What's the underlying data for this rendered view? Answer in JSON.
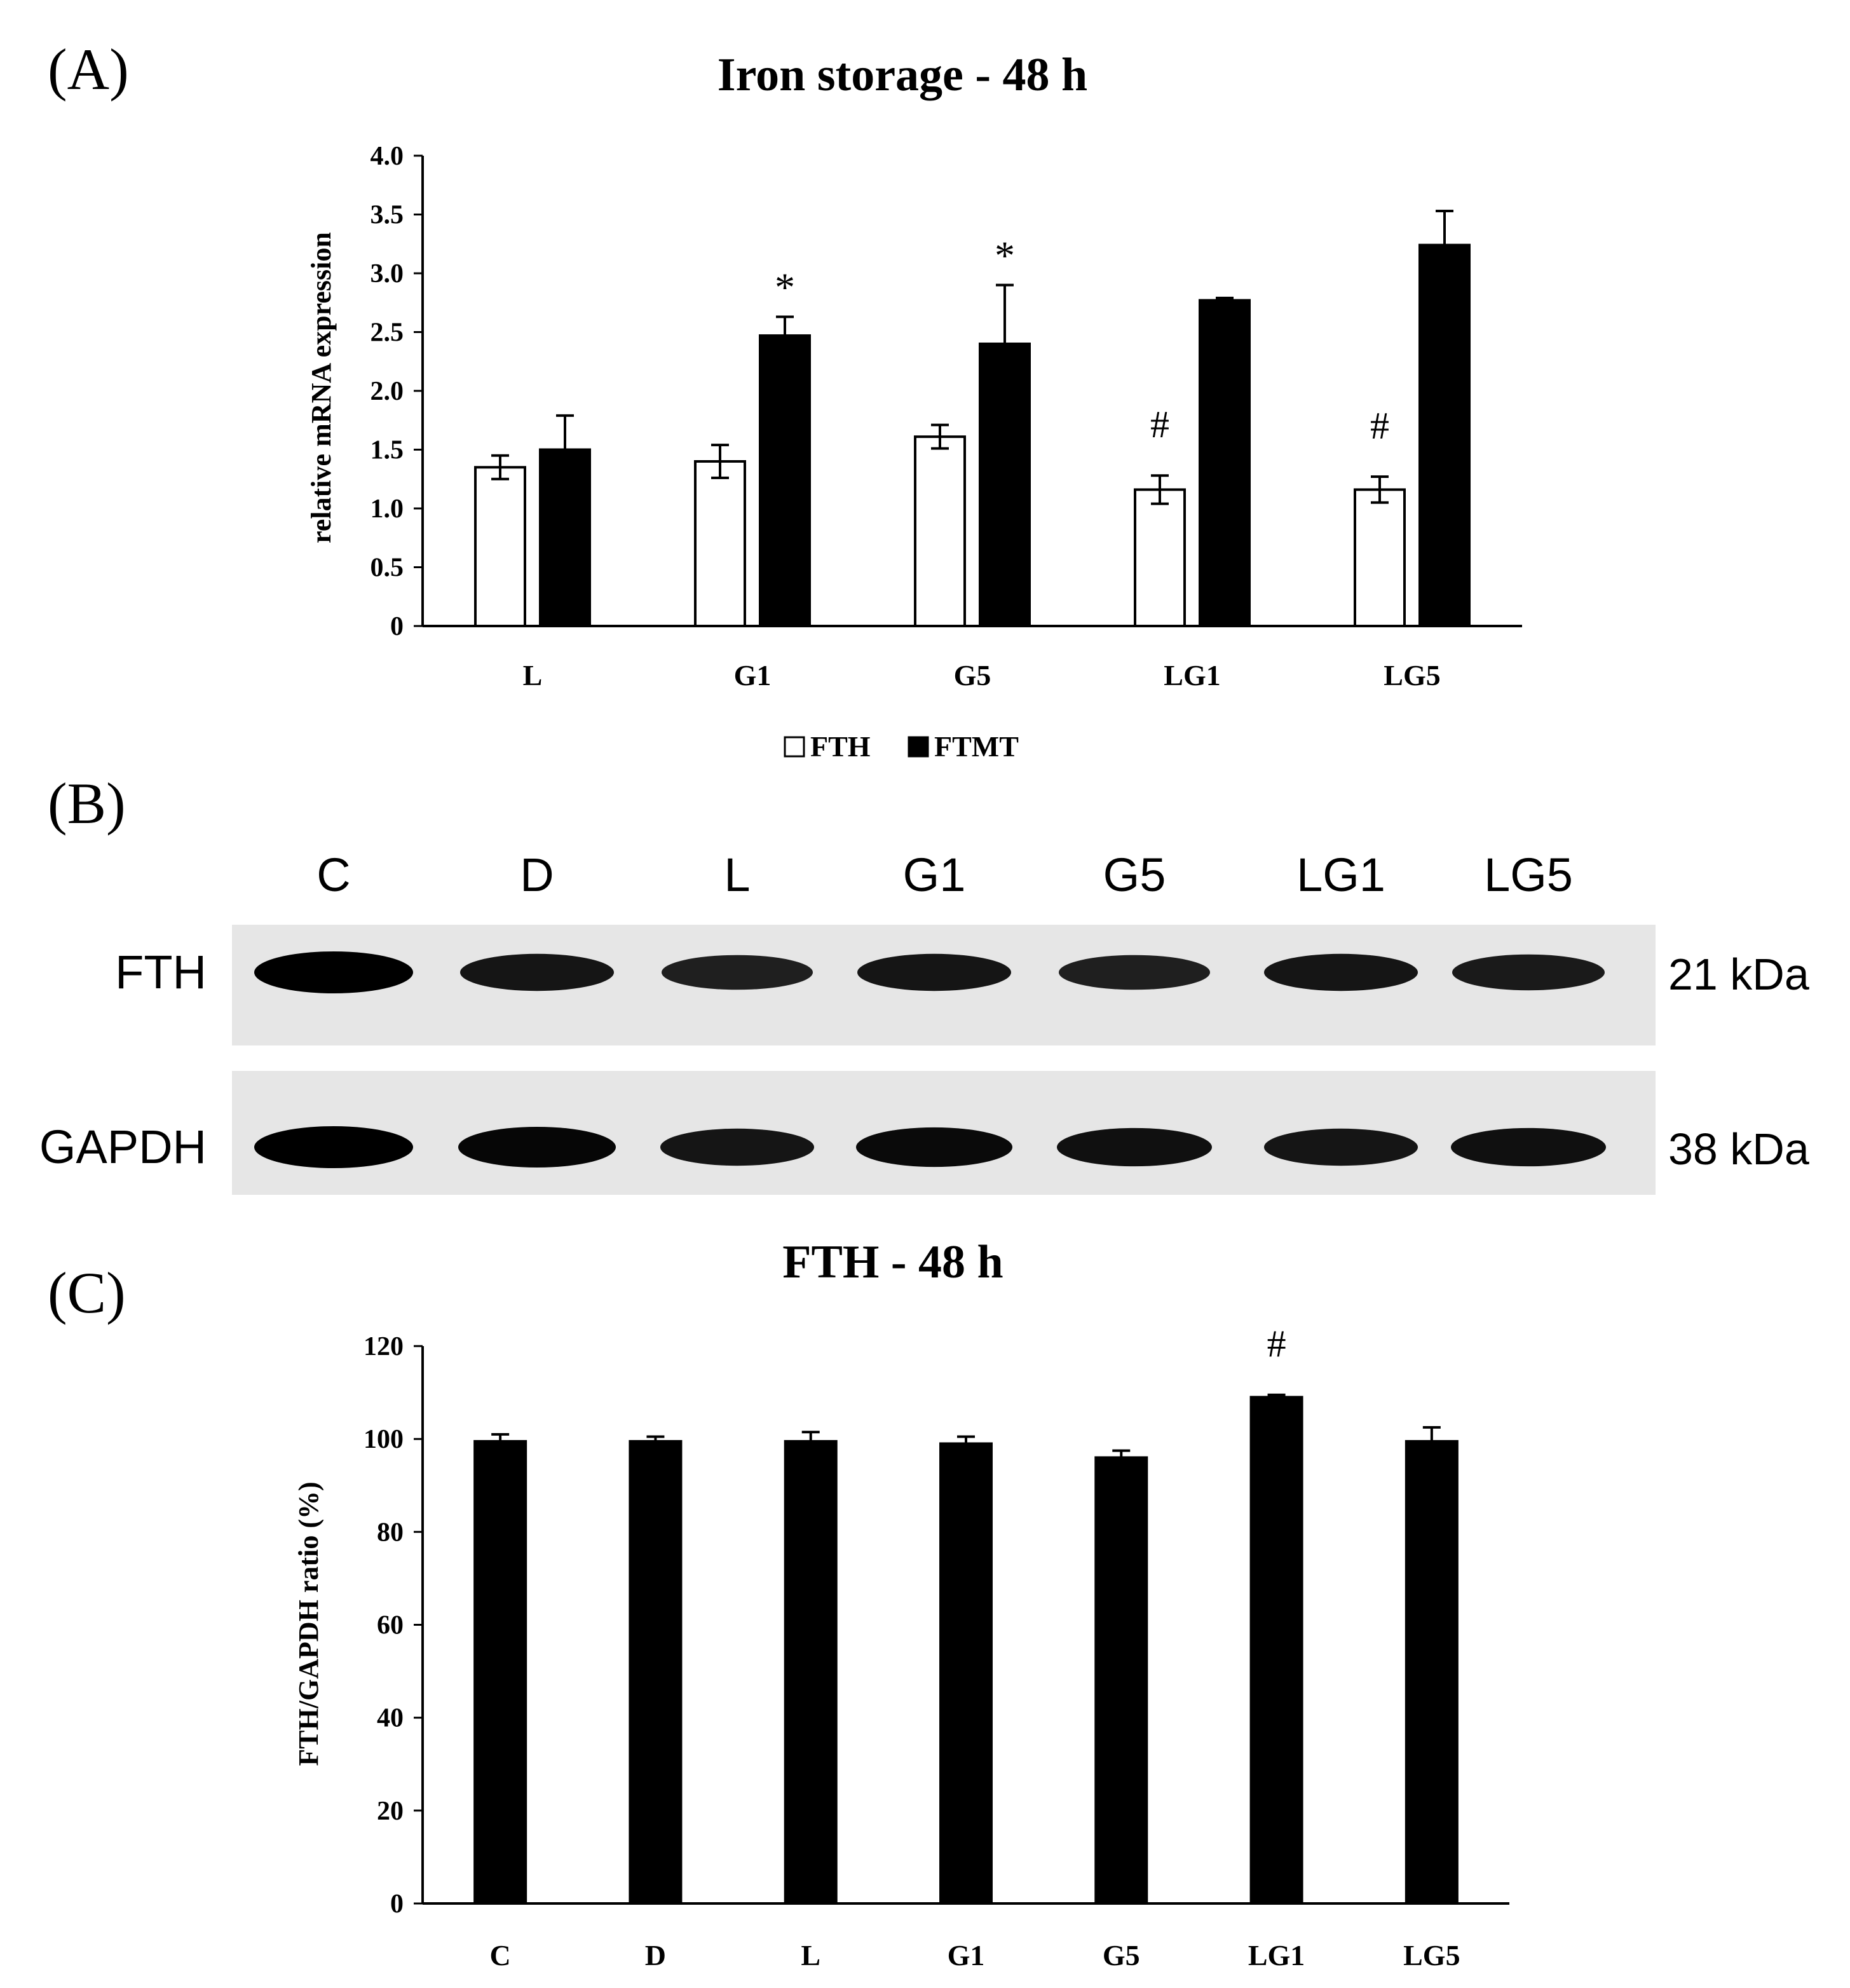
{
  "panels": {
    "a": "(A)",
    "b": "(B)",
    "c": "(C)"
  },
  "colors": {
    "bar_black": "#000000",
    "bar_white": "#ffffff",
    "axis": "#000000",
    "blot_background": "#e6e6e6",
    "band": "#000000"
  },
  "chart_data": [
    {
      "type": "bar",
      "title": "Iron storage - 48 h",
      "xlabel": "",
      "ylabel": "relative mRNA expression",
      "ylim": [
        0,
        4.0
      ],
      "yticks": [
        "0",
        "0.5",
        "1.0",
        "1.5",
        "2.0",
        "2.5",
        "3.0",
        "3.5",
        "4.0"
      ],
      "grid": false,
      "legend_placement": "bottom",
      "categories": [
        "L",
        "G1",
        "G5",
        "LG1",
        "LG5"
      ],
      "series": [
        {
          "name": "FTH",
          "color": "#ffffff",
          "values": [
            1.35,
            1.4,
            1.61,
            1.16,
            1.16
          ],
          "errors": [
            0.1,
            0.14,
            0.1,
            0.12,
            0.11
          ]
        },
        {
          "name": "FTMT",
          "color": "#000000",
          "values": [
            1.5,
            2.47,
            2.4,
            2.77,
            3.24
          ],
          "errors": [
            0.29,
            0.16,
            0.5,
            0.02,
            0.29
          ]
        }
      ],
      "annotations": [
        {
          "text": "*",
          "category": "G1",
          "series": "FTMT"
        },
        {
          "text": "*",
          "category": "G5",
          "series": "FTMT"
        },
        {
          "text": "#",
          "category": "LG1",
          "series": "FTH"
        },
        {
          "text": "#",
          "category": "LG5",
          "series": "FTH"
        }
      ]
    },
    {
      "type": "bar",
      "title": "FTH - 48 h",
      "xlabel": "",
      "ylabel": "FTH/GAPDH ratio (%)",
      "ylim": [
        0,
        120
      ],
      "yticks": [
        "0",
        "20",
        "40",
        "60",
        "80",
        "100",
        "120"
      ],
      "grid": false,
      "categories": [
        "C",
        "D",
        "L",
        "G1",
        "G5",
        "LG1",
        "LG5"
      ],
      "series": [
        {
          "color": "#000000",
          "values": [
            99.5,
            99.5,
            99.5,
            99.0,
            96.0,
            109.0,
            99.5
          ],
          "errors": [
            1.5,
            1.0,
            2.0,
            1.5,
            1.5,
            0.5,
            3.0
          ]
        }
      ],
      "annotations": [
        {
          "text": "#",
          "category": "LG1"
        }
      ]
    }
  ],
  "blot": {
    "lanes": [
      "C",
      "D",
      "L",
      "G1",
      "G5",
      "LG1",
      "LG5"
    ],
    "rows": [
      {
        "protein": "FTH",
        "size": "21 kDa",
        "intensity": [
          1.0,
          0.8,
          0.7,
          0.8,
          0.7,
          0.8,
          0.75
        ]
      },
      {
        "protein": "GAPDH",
        "size": "38 kDa",
        "intensity": [
          1.0,
          0.95,
          0.8,
          0.9,
          0.85,
          0.8,
          0.85
        ]
      }
    ]
  }
}
